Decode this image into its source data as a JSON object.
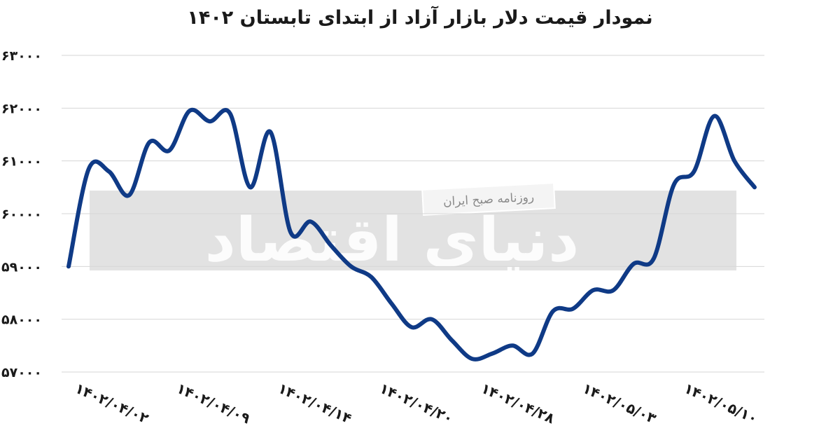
{
  "chart_data": {
    "type": "line",
    "title": "نمودار قیمت دلار بازار آزاد از ابتدای تابستان ۱۴۰۲",
    "xlabel": "",
    "ylabel": "",
    "ylim": [
      57000,
      63000
    ],
    "yticks": [
      57000,
      58000,
      59000,
      60000,
      61000,
      62000,
      63000
    ],
    "ytick_labels": [
      "۵۷۰۰۰",
      "۵۸۰۰۰",
      "۵۹۰۰۰",
      "۶۰۰۰۰",
      "۶۱۰۰۰",
      "۶۲۰۰۰",
      "۶۳۰۰۰"
    ],
    "x_tick_labels": [
      "۱۴۰۲/۰۴/۰۲",
      "۱۴۰۲/۰۴/۰۹",
      "۱۴۰۲/۰۴/۱۴",
      "۱۴۰۲/۰۴/۲۰",
      "۱۴۰۲/۰۴/۲۸",
      "۱۴۰۲/۰۵/۰۳",
      "۱۴۰۲/۰۵/۱۰"
    ],
    "grid": true,
    "line_color": "#0f3a86",
    "series": [
      {
        "values": [
          59000,
          60850,
          60800,
          60350,
          61350,
          61200,
          61950,
          61750,
          61900,
          60500,
          61550,
          59650,
          59850,
          59400,
          59000,
          58800,
          58300,
          57850,
          58000,
          57600,
          57250,
          57350,
          57500,
          57350,
          58150,
          58200,
          58550,
          58550,
          59050,
          59150,
          60550,
          60800,
          61850,
          61000,
          60500
        ]
      }
    ]
  },
  "watermark": {
    "text": "دنیای اقتصاد",
    "badge": "روزنامه صبح ایران"
  }
}
